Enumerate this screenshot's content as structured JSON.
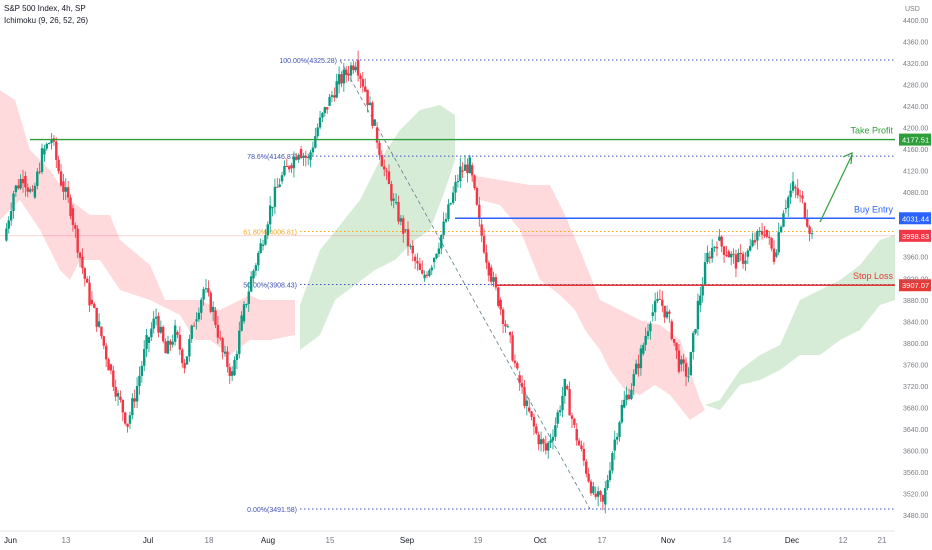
{
  "header": {
    "title": "S&P 500 Index, 4h, SP",
    "indicator": "Ichimoku (9, 26, 52, 26)"
  },
  "axis": {
    "currency": "USD",
    "price_ticks": [
      4400,
      4360,
      4320,
      4280,
      4240,
      4200,
      4160,
      4120,
      4080,
      3960,
      3920,
      3880,
      3840,
      3800,
      3760,
      3720,
      3680,
      3640,
      3600,
      3560,
      3520,
      3480
    ],
    "price_tick_labels": [
      "4400.00",
      "4360.00",
      "4320.00",
      "4280.00",
      "4240.00",
      "4200.00",
      "4160.00",
      "4120.00",
      "4080.00",
      "3960.00",
      "3920.00",
      "3880.00",
      "3840.00",
      "3800.00",
      "3760.00",
      "3720.00",
      "3680.00",
      "3640.00",
      "3600.00",
      "3560.00",
      "3520.00",
      "3480.00"
    ],
    "x_labels": [
      "Jun",
      "13",
      "Jul",
      "18",
      "Aug",
      "15",
      "Sep",
      "19",
      "Oct",
      "17",
      "Nov",
      "14",
      "Dec",
      "12",
      "21"
    ],
    "ylim": [
      3460,
      4420
    ]
  },
  "colors": {
    "up": "#089981",
    "down": "#f23645",
    "take_profit": "#2e9e3a",
    "buy_entry": "#2962ff",
    "stop_loss": "#e53935",
    "fib": "#3f51b5",
    "fib618": "#f5a623",
    "cloud_green": "#c8e6c9",
    "cloud_red": "#ffcdd2"
  },
  "chart_data": {
    "type": "candlestick",
    "title": "S&P 500 Index, 4h, SP",
    "levels": [
      {
        "name": "Take Profit",
        "value": 4177.51,
        "label": "4177.51"
      },
      {
        "name": "Buy Entry",
        "value": 4031.44,
        "label": "4031.44"
      },
      {
        "name": "Stop Loss",
        "value": 3907.07,
        "label": "3907.07"
      }
    ],
    "current_price": {
      "value": 3998.83,
      "label": "3998.83"
    },
    "fibonacci": [
      {
        "label": "100.00%(4325.28)",
        "value": 4325.28
      },
      {
        "label": "78.6%(4146.87)",
        "value": 4146.87
      },
      {
        "label": "61.80%(4006.81)",
        "value": 4006.81
      },
      {
        "label": "50.00%(3908.43)",
        "value": 3908.43
      },
      {
        "label": "0.00%(3491.58)",
        "value": 3491.58
      }
    ],
    "path_closes": [
      3990,
      4080,
      4110,
      4070,
      4150,
      4180,
      4100,
      4050,
      3960,
      3880,
      3830,
      3760,
      3700,
      3650,
      3720,
      3800,
      3850,
      3780,
      3820,
      3760,
      3840,
      3900,
      3860,
      3780,
      3740,
      3840,
      3920,
      3980,
      4050,
      4100,
      4130,
      4160,
      4140,
      4200,
      4240,
      4280,
      4300,
      4325,
      4270,
      4200,
      4120,
      4060,
      4010,
      3960,
      3920,
      3950,
      4000,
      4060,
      4120,
      4130,
      4020,
      3940,
      3880,
      3820,
      3740,
      3680,
      3630,
      3600,
      3650,
      3720,
      3640,
      3580,
      3520,
      3500,
      3600,
      3680,
      3720,
      3780,
      3850,
      3880,
      3840,
      3760,
      3740,
      3870,
      3960,
      3990,
      3970,
      3950,
      3960,
      3990,
      4010,
      3960,
      4050,
      4090,
      4060,
      3998.83
    ]
  }
}
